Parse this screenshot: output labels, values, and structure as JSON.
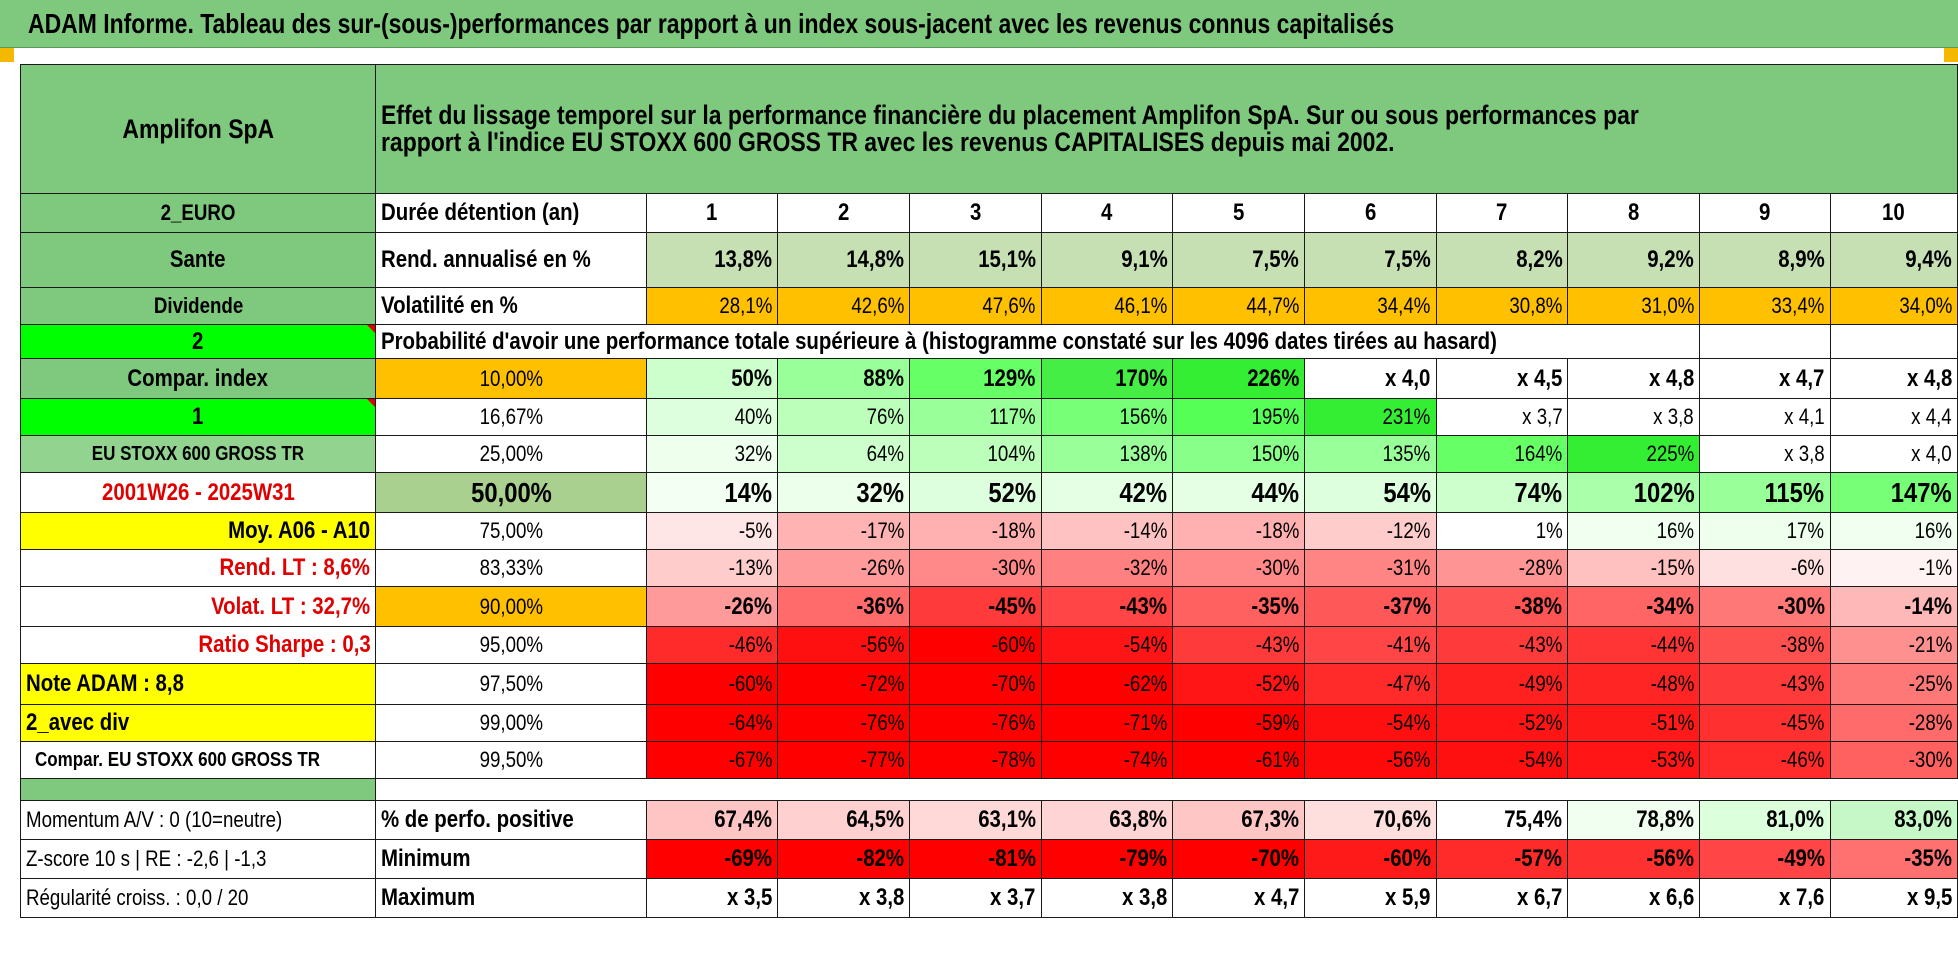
{
  "header": {
    "title": "ADAM Informe. Tableau des sur-(sous-)performances par rapport à un index sous-jacent avec les revenus connus capitalisés"
  },
  "left": {
    "name": "Amplifon SpA",
    "currency": "2_EURO",
    "sector": "Sante",
    "dividend": "Dividende",
    "value_2": "2",
    "compar_index": "Compar. index",
    "value_1": "1",
    "index_name": "EU STOXX 600 GROSS TR",
    "period": "2001W26 - 2025W31",
    "moy": "Moy. A06 - A10",
    "rend_lt": "Rend. LT :    8,6%",
    "volat_lt": "Volat. LT :    32,7%",
    "sharpe": "Ratio Sharpe :     0,3",
    "note": "Note ADAM : 8,8",
    "avec_div": "2_avec div",
    "compar_full": "Compar. EU STOXX 600 GROSS TR",
    "momentum": "Momentum A/V : 0 (10=neutre)",
    "zscore": "Z-score 10 s | RE : -2,6 | -1,3",
    "regularite": "Régularité croiss. : 0,0 / 20"
  },
  "description": "Effet du lissage temporel sur la performance financière du placement Amplifon SpA. Sur ou sous performances par rapport à l'indice EU STOXX 600 GROSS TR avec les revenus CAPITALISES depuis mai 2002.",
  "labels": {
    "duree": "Durée détention (an)",
    "rend": "Rend. annualisé en %",
    "vol": "Volatilité en %",
    "prob": "Probabilité d'avoir une performance totale supérieure à (histogramme constaté sur les 4096 dates tirées au hasard)",
    "pct_pos": "% de perfo. positive",
    "minimum": "Minimum",
    "maximum": "Maximum"
  },
  "years": [
    "1",
    "2",
    "3",
    "4",
    "5",
    "6",
    "7",
    "8",
    "9",
    "10"
  ],
  "rend": [
    "13,8%",
    "14,8%",
    "15,1%",
    "9,1%",
    "7,5%",
    "7,5%",
    "8,2%",
    "9,2%",
    "8,9%",
    "9,4%"
  ],
  "vol": [
    "28,1%",
    "42,6%",
    "47,6%",
    "46,1%",
    "44,7%",
    "34,4%",
    "30,8%",
    "31,0%",
    "33,4%",
    "34,0%"
  ],
  "perf_rows": [
    {
      "pct": "10,00%",
      "values": [
        "50%",
        "88%",
        "129%",
        "170%",
        "226%",
        "x 4,0",
        "x 4,5",
        "x 4,8",
        "x 4,7",
        "x 4,8"
      ]
    },
    {
      "pct": "16,67%",
      "values": [
        "40%",
        "76%",
        "117%",
        "156%",
        "195%",
        "231%",
        "x 3,7",
        "x 3,8",
        "x 4,1",
        "x 4,4"
      ]
    },
    {
      "pct": "25,00%",
      "values": [
        "32%",
        "64%",
        "104%",
        "138%",
        "150%",
        "135%",
        "164%",
        "225%",
        "x 3,8",
        "x 4,0"
      ]
    },
    {
      "pct": "50,00%",
      "values": [
        "14%",
        "32%",
        "52%",
        "42%",
        "44%",
        "54%",
        "74%",
        "102%",
        "115%",
        "147%"
      ]
    },
    {
      "pct": "75,00%",
      "values": [
        "-5%",
        "-17%",
        "-18%",
        "-14%",
        "-18%",
        "-12%",
        "1%",
        "16%",
        "17%",
        "16%"
      ]
    },
    {
      "pct": "83,33%",
      "values": [
        "-13%",
        "-26%",
        "-30%",
        "-32%",
        "-30%",
        "-31%",
        "-28%",
        "-15%",
        "-6%",
        "-1%"
      ]
    },
    {
      "pct": "90,00%",
      "values": [
        "-26%",
        "-36%",
        "-45%",
        "-43%",
        "-35%",
        "-37%",
        "-38%",
        "-34%",
        "-30%",
        "-14%"
      ]
    },
    {
      "pct": "95,00%",
      "values": [
        "-46%",
        "-56%",
        "-60%",
        "-54%",
        "-43%",
        "-41%",
        "-43%",
        "-44%",
        "-38%",
        "-21%"
      ]
    },
    {
      "pct": "97,50%",
      "values": [
        "-60%",
        "-72%",
        "-70%",
        "-62%",
        "-52%",
        "-47%",
        "-49%",
        "-48%",
        "-43%",
        "-25%"
      ]
    },
    {
      "pct": "99,00%",
      "values": [
        "-64%",
        "-76%",
        "-76%",
        "-71%",
        "-59%",
        "-54%",
        "-52%",
        "-51%",
        "-45%",
        "-28%"
      ]
    },
    {
      "pct": "99,50%",
      "values": [
        "-67%",
        "-77%",
        "-78%",
        "-74%",
        "-61%",
        "-56%",
        "-54%",
        "-53%",
        "-46%",
        "-30%"
      ]
    }
  ],
  "pct_pos": [
    "67,4%",
    "64,5%",
    "63,1%",
    "63,8%",
    "67,3%",
    "70,6%",
    "75,4%",
    "78,8%",
    "81,0%",
    "83,0%"
  ],
  "minimum": [
    "-69%",
    "-82%",
    "-81%",
    "-79%",
    "-70%",
    "-60%",
    "-57%",
    "-56%",
    "-49%",
    "-35%"
  ],
  "maximum": [
    "x 3,5",
    "x 3,8",
    "x 3,7",
    "x 3,8",
    "x 4,7",
    "x 5,9",
    "x 6,7",
    "x 6,6",
    "x 7,6",
    "x 9,5"
  ],
  "colors": {
    "header_green": "#7fc97f",
    "mid_green": "#92d38f",
    "bright_green": "#00ff00",
    "light_green": "#c6e0b4",
    "orange": "#ffc000",
    "yellow": "#ffff00",
    "olive": "#a9d08e",
    "red_text": "#e00000"
  },
  "cell_colors": {
    "perf": [
      [
        "#ccffcc",
        "#99ff99",
        "#66ff66",
        "#44ee44",
        "#33ee33",
        "#ffffff",
        "#ffffff",
        "#ffffff",
        "#ffffff",
        "#ffffff"
      ],
      [
        "#ddffdd",
        "#bbffbb",
        "#99ff99",
        "#77ff77",
        "#55ff55",
        "#33ee33",
        "#ffffff",
        "#ffffff",
        "#ffffff",
        "#ffffff"
      ],
      [
        "#eeffee",
        "#ccffcc",
        "#bbffbb",
        "#99ff99",
        "#88ff88",
        "#99ff99",
        "#66ff66",
        "#33ee33",
        "#ffffff",
        "#ffffff"
      ],
      [
        "#f2fff2",
        "#ebffeb",
        "#ddffdd",
        "#e4ffe4",
        "#e4ffe4",
        "#ddffdd",
        "#ccffcc",
        "#aaffaa",
        "#99ff99",
        "#77ff77"
      ],
      [
        "#ffe6e6",
        "#ffb3b3",
        "#ffb0b0",
        "#ffc2c2",
        "#ffb0b0",
        "#ffcccc",
        "#ffffff",
        "#f0fff0",
        "#eeffee",
        "#f0fff0"
      ],
      [
        "#ffcccc",
        "#ff9a9a",
        "#ff8888",
        "#ff8080",
        "#ff8888",
        "#ff8585",
        "#ff9494",
        "#ffc0c0",
        "#ffe0e0",
        "#fff2f2"
      ],
      [
        "#ff9a9a",
        "#ff6b6b",
        "#ff3a3a",
        "#ff4545",
        "#ff6060",
        "#ff5858",
        "#ff5454",
        "#ff6565",
        "#ff7878",
        "#ffb8b8"
      ],
      [
        "#ff2a2a",
        "#ff1010",
        "#ff0000",
        "#ff1515",
        "#ff3a3a",
        "#ff4545",
        "#ff3a3a",
        "#ff3535",
        "#ff5050",
        "#ff9090"
      ],
      [
        "#ff0000",
        "#ff0000",
        "#ff0000",
        "#ff0000",
        "#ff1515",
        "#ff2a2a",
        "#ff2020",
        "#ff2525",
        "#ff3a3a",
        "#ff7878"
      ],
      [
        "#ff0000",
        "#ff0000",
        "#ff0000",
        "#ff0000",
        "#ff0000",
        "#ff1010",
        "#ff1515",
        "#ff1a1a",
        "#ff3030",
        "#ff6a6a"
      ],
      [
        "#ff0000",
        "#ff0000",
        "#ff0000",
        "#ff0000",
        "#ff0000",
        "#ff0a0a",
        "#ff1010",
        "#ff1515",
        "#ff2a2a",
        "#ff6060"
      ]
    ],
    "pct_pos": [
      "#ffc4c4",
      "#ffd0d0",
      "#ffd8d8",
      "#ffd4d4",
      "#ffc6c6",
      "#ffdede",
      "#ffffff",
      "#f0fff0",
      "#dcffdc",
      "#c6f7c6"
    ],
    "minimum": [
      "#ff0000",
      "#ff0000",
      "#ff0000",
      "#ff0000",
      "#ff0000",
      "#ff1a1a",
      "#ff2a2a",
      "#ff3030",
      "#ff4545",
      "#ff7070"
    ],
    "rend": [
      "#c6e0b4",
      "#c6e0b4",
      "#c6e0b4",
      "#c6e0b4",
      "#c6e0b4",
      "#c6e0b4",
      "#c6e0b4",
      "#c6e0b4",
      "#c6e0b4",
      "#c6e0b4"
    ]
  }
}
